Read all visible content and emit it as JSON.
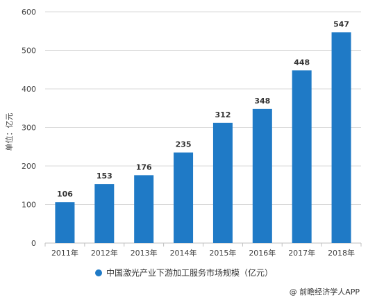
{
  "chart_data": {
    "type": "bar",
    "categories": [
      "2011年",
      "2012年",
      "2013年",
      "2014年",
      "2015年",
      "2016年",
      "2017年",
      "2018年"
    ],
    "series": [
      {
        "name": "中国激光产业下游加工服务市场规模（亿元）",
        "values": [
          106,
          153,
          176,
          235,
          312,
          348,
          448,
          547
        ]
      }
    ],
    "ylabel": "单位：亿元",
    "ylim": [
      0,
      600
    ],
    "yticks": [
      0,
      100,
      200,
      300,
      400,
      500,
      600
    ],
    "grid": true,
    "legend": "bottom",
    "bar_color": "#1f7ac6"
  },
  "source": "@ 前瞻经济学人APP"
}
